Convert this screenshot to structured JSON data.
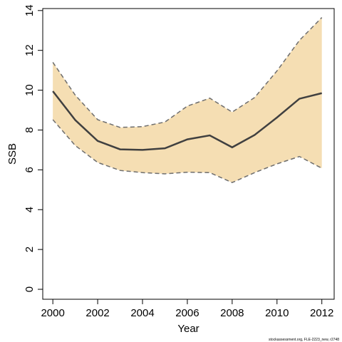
{
  "chart_data": {
    "type": "area",
    "title": "",
    "xlabel": "Year",
    "ylabel": "SSB",
    "x": [
      2000,
      2001,
      2002,
      2003,
      2004,
      2005,
      2006,
      2007,
      2008,
      2009,
      2010,
      2011,
      2012
    ],
    "series": [
      {
        "role": "estimate",
        "values": [
          9.95,
          8.5,
          7.45,
          7.03,
          7.0,
          7.08,
          7.53,
          7.73,
          7.13,
          7.75,
          8.63,
          9.57,
          9.85
        ]
      },
      {
        "role": "upper",
        "values": [
          11.4,
          9.75,
          8.52,
          8.13,
          8.17,
          8.4,
          9.2,
          9.6,
          8.9,
          9.63,
          10.97,
          12.5,
          13.65
        ]
      },
      {
        "role": "lower",
        "values": [
          8.52,
          7.22,
          6.37,
          5.97,
          5.86,
          5.8,
          5.88,
          5.86,
          5.36,
          5.86,
          6.3,
          6.67,
          6.08
        ]
      }
    ],
    "xlim": [
      1999.55,
      2012.55
    ],
    "ylim": [
      -0.5,
      14.1
    ],
    "xticks": [
      "2000",
      "2002",
      "2004",
      "2006",
      "2008",
      "2010",
      "2012"
    ],
    "yticks": [
      "0",
      "2",
      "4",
      "6",
      "8",
      "10",
      "12",
      "14"
    ],
    "grid": false,
    "legend": "none",
    "colors": {
      "band": "#f5deb3",
      "line": "#404040",
      "bound": "#6e6e6e"
    }
  },
  "footer": {
    "source_note": "stockassessment.org, FLE-2223_new, r2748"
  }
}
